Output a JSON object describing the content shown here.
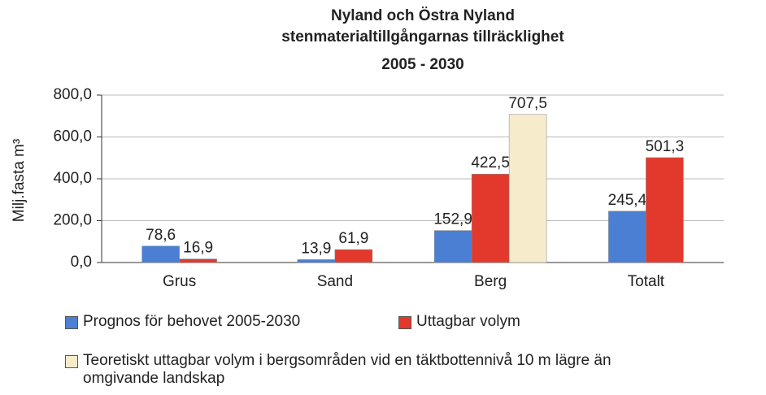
{
  "chart_data": {
    "type": "bar",
    "title": [
      "Nyland och Östra Nyland",
      "stenmaterialtillgångarnas tillräcklighet"
    ],
    "subtitle": "2005 - 2030",
    "y_label": "Milj.fasta m³",
    "categories": [
      "Grus",
      "Sand",
      "Berg",
      "Totalt"
    ],
    "series": [
      {
        "name": "Prognos för behovet 2005-2030",
        "color": "#4a7fd4",
        "values": [
          78.6,
          13.9,
          152.9,
          245.4
        ],
        "value_labels": [
          "78,6",
          "13,9",
          "152,9",
          "245,4"
        ]
      },
      {
        "name": "Uttagbar volym",
        "color": "#e2392c",
        "values": [
          16.9,
          61.9,
          422.5,
          501.3
        ],
        "value_labels": [
          "16,9",
          "61,9",
          "422,5",
          "501,3"
        ]
      },
      {
        "name": "Teoretiskt uttagbar volym i bergsområden vid en täktbottennivå 10 m lägre än omgivande landskap",
        "color": "#f6ebcb",
        "values": [
          null,
          null,
          707.5,
          null
        ],
        "value_labels": [
          null,
          null,
          "707,5",
          null
        ]
      }
    ],
    "ylim": [
      0,
      800
    ],
    "yticks": [
      {
        "value": 0,
        "label": "0,0"
      },
      {
        "value": 200,
        "label": "200,0"
      },
      {
        "value": 400,
        "label": "400,0"
      },
      {
        "value": 600,
        "label": "600,0"
      },
      {
        "value": 800,
        "label": "800,0"
      }
    ],
    "grid": true
  }
}
